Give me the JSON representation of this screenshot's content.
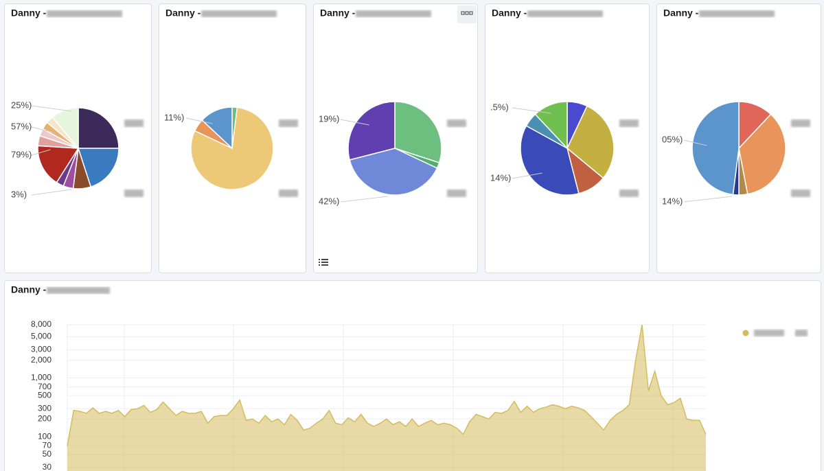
{
  "chart_data": [
    {
      "type": "pie",
      "title": "Danny -",
      "values": [
        25,
        20,
        7,
        4,
        3,
        17,
        4,
        3,
        3,
        3,
        11
      ],
      "colors": [
        "#3b2a5a",
        "#3a7bbf",
        "#8b4a2a",
        "#a04ca0",
        "#6a3a8a",
        "#b0281e",
        "#e0a0a0",
        "#f0c8c8",
        "#e8b070",
        "#f5e6c8",
        "#e6f5dc"
      ],
      "annotations": [
        "25%)",
        "57%)",
        "79%)",
        "3%)"
      ]
    },
    {
      "type": "pie",
      "title": "Danny -",
      "values": [
        2,
        80,
        5,
        13
      ],
      "colors": [
        "#6dbf80",
        "#ecc877",
        "#e8945a",
        "#5b95cc"
      ],
      "annotations": [
        "11%)"
      ]
    },
    {
      "type": "pie",
      "title": "Danny -",
      "values": [
        30,
        2,
        39,
        29
      ],
      "colors": [
        "#6dbf80",
        "#4fb070",
        "#7088d8",
        "#6040b0"
      ],
      "annotations": [
        "19%)",
        "42%)"
      ]
    },
    {
      "type": "pie",
      "title": "Danny -",
      "values": [
        7,
        29,
        10,
        37,
        5,
        12
      ],
      "colors": [
        "#4a4ad0",
        "#c4b040",
        "#c06040",
        "#3a4ab8",
        "#4a90b0",
        "#70c050"
      ],
      "annotations": [
        ".5%)",
        "14%)"
      ]
    },
    {
      "type": "pie",
      "title": "Danny -",
      "values": [
        12,
        35,
        3,
        2,
        48
      ],
      "colors": [
        "#e0665a",
        "#e8945a",
        "#b08a4a",
        "#2a3a8a",
        "#5b95cc"
      ],
      "annotations": [
        "05%)",
        "14%)"
      ]
    },
    {
      "type": "area",
      "title": "Danny -",
      "log_scale": true,
      "grid": true,
      "color": "#d4bb5c",
      "ylim": [
        25,
        8000
      ],
      "yticks": [
        {
          "value": 8000,
          "label": "8,000"
        },
        {
          "value": 5000,
          "label": "5,000"
        },
        {
          "value": 3000,
          "label": "3,000"
        },
        {
          "value": 2000,
          "label": "2,000"
        },
        {
          "value": 1000,
          "label": "1,000"
        },
        700,
        500,
        300,
        200,
        100,
        70,
        50,
        30
      ],
      "values": [
        70,
        280,
        270,
        250,
        310,
        250,
        270,
        250,
        280,
        220,
        290,
        300,
        340,
        260,
        290,
        390,
        300,
        230,
        270,
        250,
        250,
        270,
        170,
        220,
        230,
        230,
        300,
        420,
        190,
        200,
        170,
        230,
        180,
        200,
        160,
        240,
        190,
        130,
        140,
        170,
        200,
        280,
        170,
        160,
        210,
        180,
        240,
        170,
        150,
        170,
        200,
        160,
        180,
        150,
        200,
        150,
        170,
        190,
        160,
        170,
        160,
        140,
        110,
        180,
        240,
        220,
        200,
        260,
        250,
        280,
        400,
        260,
        330,
        260,
        300,
        320,
        350,
        330,
        300,
        330,
        310,
        280,
        220,
        170,
        130,
        190,
        240,
        280,
        350,
        2000,
        8000,
        600,
        1300,
        500,
        350,
        380,
        450,
        200,
        190,
        190,
        110
      ]
    }
  ]
}
